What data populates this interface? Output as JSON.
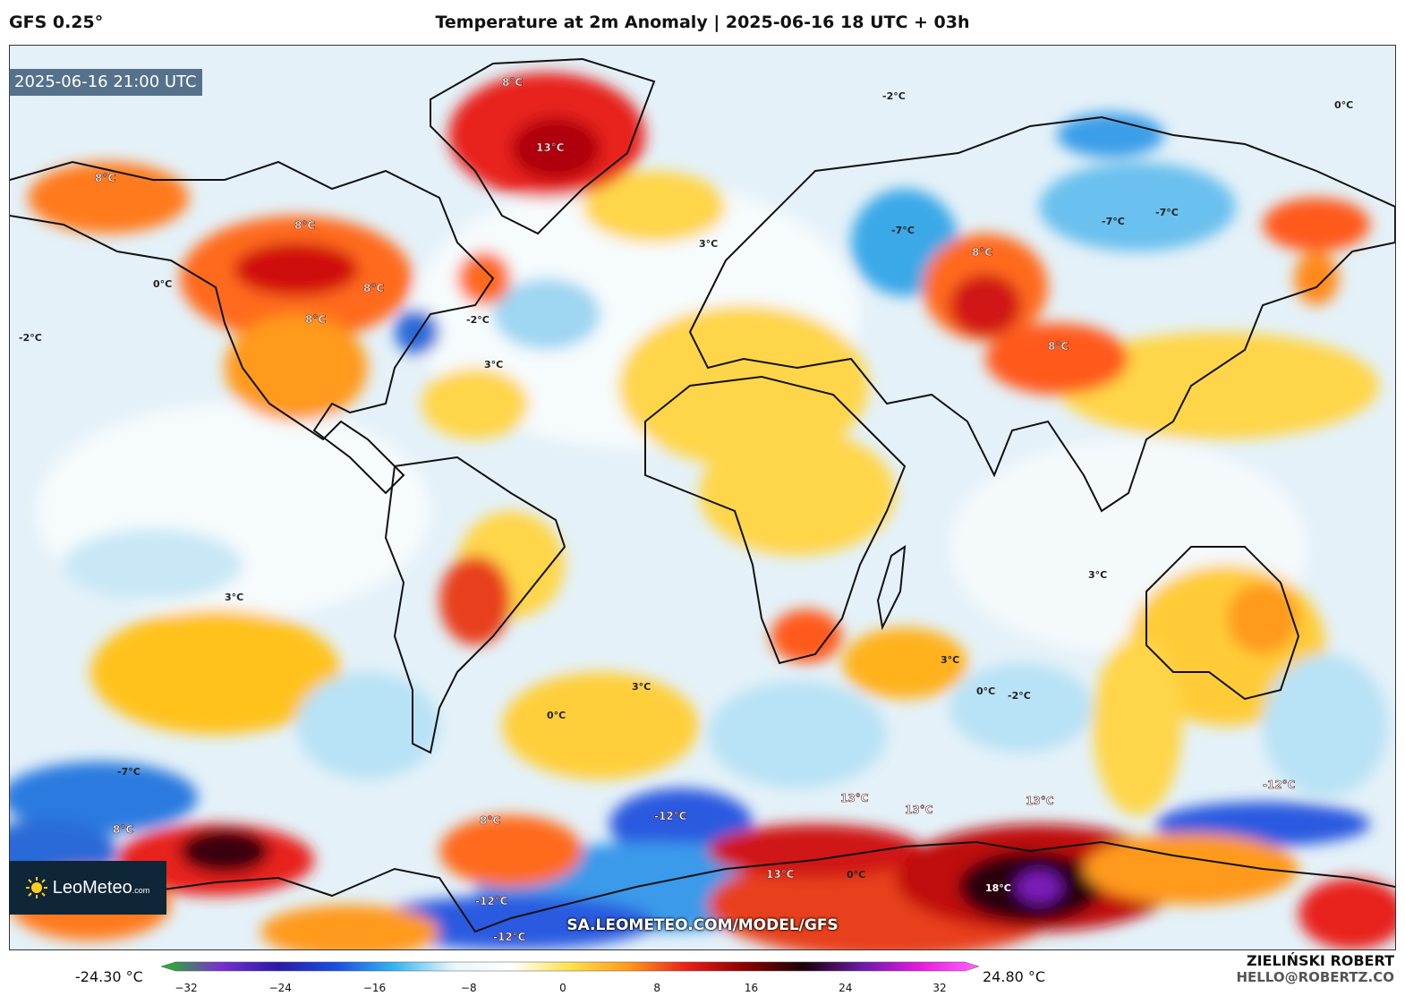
{
  "header": {
    "model": "GFS 0.25°",
    "title": "Temperature at 2m Anomaly | 2025-06-16 18 UTC + 03h"
  },
  "map": {
    "valid_time": "2025-06-16 21:00 UTC",
    "website": "SA.LEOMETEO.COM/MODEL/GFS",
    "contour_labels": {
      "greenland_max": "13°C",
      "antarctic_max": "18°C",
      "southern_ocean_a": "13°C",
      "southern_ocean_b": "13°C",
      "southern_ocean_c": "13°C",
      "southern_ocean_d": "13°C",
      "cold_pacific_s": "-12°C",
      "cold_atlantic_s": "-12°C",
      "cold_antarctic": "-12°C",
      "cold_indian_s": "-12°C",
      "siberia_cold": "-7°C",
      "siberia_cold2": "-7°C",
      "russia_cold": "-7°C",
      "pacific_cold": "-7°C",
      "alaska_warm": "8°C",
      "canada_warm": "8°C",
      "canada_warm2": "8°C",
      "usa_warm": "8°C",
      "greenland_edge": "8°C",
      "kazakh_warm": "8°C",
      "china_warm": "8°C",
      "atlantic_s": "8°C",
      "pacific_s": "8°C",
      "africa_s": "3°C",
      "australia": "3°C",
      "sa_pac": "3°C",
      "indian": "3°C",
      "europe": "3°C",
      "atl_n": "3°C",
      "zero_pac": "0°C",
      "zero_atl": "0°C",
      "zero_ind": "0°C",
      "zero_arc": "0°C",
      "zero_s": "0°C",
      "m2_pac": "-2°C",
      "m2_atl": "-2°C",
      "m2_ind": "-2°C",
      "m2_arc": "-2°C"
    }
  },
  "logo": {
    "name": "LeoMeteo",
    "domain": ".com"
  },
  "colorbar": {
    "min_label": "-24.30 °C",
    "max_label": "24.80 °C",
    "ticks": [
      "−32",
      "−24",
      "−16",
      "−8",
      "0",
      "8",
      "16",
      "24",
      "32"
    ],
    "stops": [
      "#22bb22",
      "#7a2fd0",
      "#2a1aa8",
      "#1a4fe0",
      "#36b6f0",
      "#e8f6fb",
      "#ffffff",
      "#ffe14a",
      "#ff9a1a",
      "#e8201a",
      "#8a0000",
      "#1a0008",
      "#6a1aa8",
      "#e81ae0",
      "#ff66ff"
    ]
  },
  "author": {
    "name": "ZIELIŃSKI ROBERT",
    "email": "HELLO@ROBERTZ.CO"
  }
}
